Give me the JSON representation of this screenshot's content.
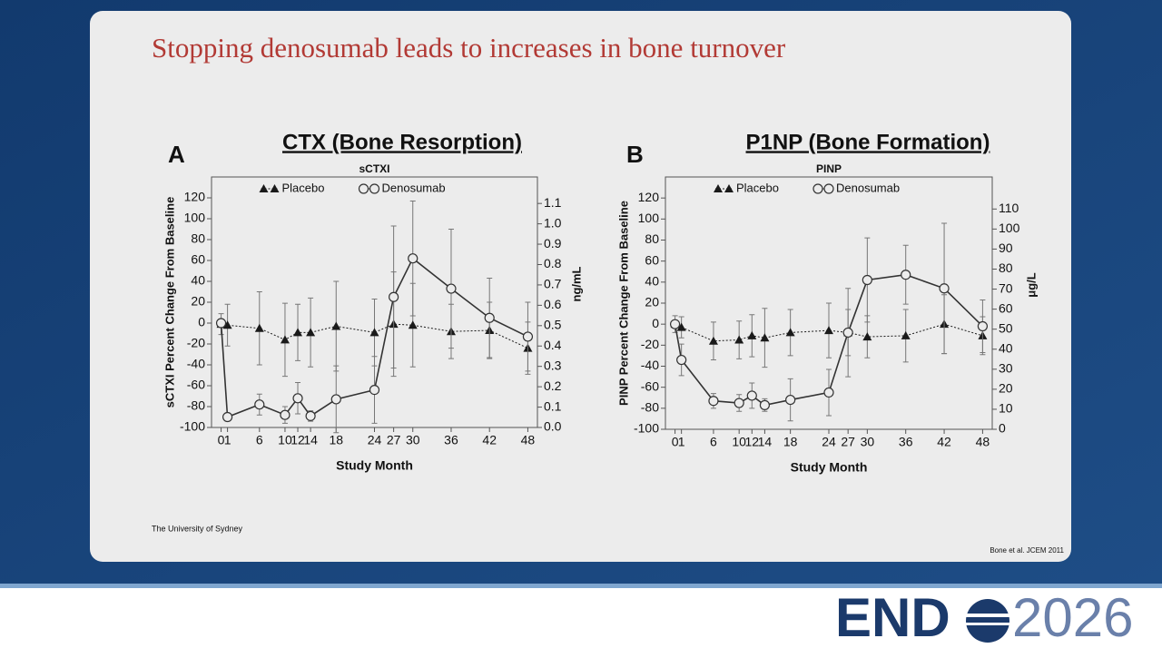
{
  "slide": {
    "title": "Stopping denosumab leads to increases in bone turnover",
    "footer_left": "The University of Sydney",
    "footer_right": "Bone et al. JCEM 2011",
    "logo_word": "END",
    "logo_year": "2026"
  },
  "chart_data": [
    {
      "type": "line",
      "panel_label": "A",
      "heading": "CTX (Bone Resorption)",
      "title": "sCTXI",
      "x_label": "Study Month",
      "y_label": "sCTXI Percent Change From Baseline",
      "y2_label": "ng/mL",
      "x": [
        0,
        1,
        6,
        10,
        12,
        14,
        18,
        24,
        27,
        30,
        36,
        42,
        48
      ],
      "xlim": [
        -1.5,
        49.5
      ],
      "xticks": [
        0,
        1,
        6,
        10,
        12,
        14,
        18,
        24,
        27,
        30,
        36,
        42,
        48
      ],
      "ylim": [
        -100,
        140
      ],
      "yticks": [
        -100,
        -80,
        -60,
        -40,
        -20,
        0,
        20,
        40,
        60,
        80,
        100,
        120
      ],
      "y2lim": [
        0,
        1.23
      ],
      "y2ticks": [
        {
          "value": 0,
          "label": "0.0"
        },
        0.1,
        0.2,
        0.3,
        0.4,
        0.5,
        0.6,
        0.7,
        0.8,
        0.9,
        {
          "value": 1,
          "label": "1.0"
        },
        1.1
      ],
      "legend": "upper center",
      "series": [
        {
          "name": "Placebo",
          "color": "#1a1a1a",
          "marker": "triangle",
          "linestyle": "dotted",
          "values": [
            -1,
            -2,
            -5,
            -16,
            -9,
            -9,
            -3,
            -9,
            -1,
            -2,
            -8,
            -7,
            -24
          ],
          "errors": [
            10,
            20,
            35,
            35,
            27,
            33,
            43,
            32,
            50,
            40,
            26,
            27,
            25
          ]
        },
        {
          "name": "Denosumab",
          "color": "#333333",
          "marker": "circle",
          "linestyle": "solid",
          "values": [
            0,
            -90,
            -78,
            -88,
            -72,
            -89,
            -73,
            -64,
            25,
            62,
            33,
            5,
            -13
          ],
          "errors": [
            0,
            0,
            10,
            8,
            15,
            5,
            32,
            32,
            68,
            55,
            57,
            38,
            33
          ]
        }
      ]
    },
    {
      "type": "line",
      "panel_label": "B",
      "heading": "P1NP (Bone Formation)",
      "title": "PINP",
      "x_label": "Study Month",
      "y_label": "PINP Percent Change From Baseline",
      "y2_label": "μg/L",
      "x": [
        0,
        1,
        6,
        10,
        12,
        14,
        18,
        24,
        27,
        30,
        36,
        42,
        48
      ],
      "xlim": [
        -1.5,
        49.5
      ],
      "xticks": [
        0,
        1,
        6,
        10,
        12,
        14,
        18,
        24,
        27,
        30,
        36,
        42,
        48
      ],
      "ylim": [
        -100,
        140
      ],
      "yticks": [
        -100,
        -80,
        -60,
        -40,
        -20,
        0,
        20,
        40,
        60,
        80,
        100,
        120
      ],
      "y2lim": [
        0,
        126
      ],
      "y2ticks": [
        0,
        10,
        20,
        30,
        40,
        50,
        60,
        70,
        80,
        90,
        100,
        110
      ],
      "legend": "upper center",
      "series": [
        {
          "name": "Placebo",
          "color": "#1a1a1a",
          "marker": "triangle",
          "linestyle": "dotted",
          "values": [
            0,
            -3,
            -16,
            -15,
            -11,
            -13,
            -8,
            -6,
            -8,
            -12,
            -11,
            0,
            -11
          ],
          "errors": [
            8,
            10,
            18,
            18,
            20,
            28,
            22,
            26,
            22,
            20,
            25,
            28,
            18
          ]
        },
        {
          "name": "Denosumab",
          "color": "#333333",
          "marker": "circle",
          "linestyle": "solid",
          "values": [
            0,
            -34,
            -73,
            -75,
            -68,
            -77,
            -72,
            -65,
            -8,
            42,
            47,
            34,
            -2
          ],
          "errors": [
            0,
            15,
            7,
            8,
            12,
            6,
            20,
            22,
            42,
            40,
            28,
            62,
            25
          ]
        }
      ]
    }
  ]
}
